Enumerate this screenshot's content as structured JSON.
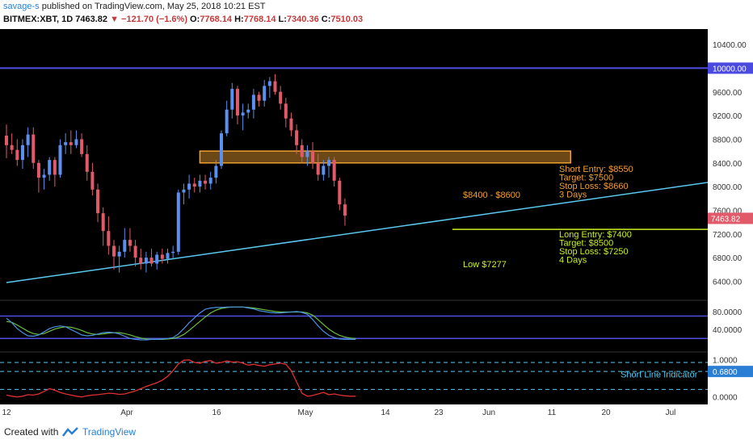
{
  "header": {
    "user": "savage-s",
    "published": " published on TradingView.com, May 25, 2018 10:21 EST",
    "symbol": "BITMEX:XBT, 1D",
    "last": "7463.82",
    "arrow": "▼",
    "change": "−121.70 (−1.6%)",
    "o_label": "O:",
    "o": "7768.14",
    "h_label": "H:",
    "h": "7768.14",
    "l_label": "L:",
    "l": "7340.36",
    "c_label": "C:",
    "c": "7510.03"
  },
  "footer": {
    "created": "Created with",
    "brand": "TradingView"
  },
  "colors": {
    "background": "#000000",
    "up": "#5b8ff0",
    "down": "#e05a6a",
    "trendline": "#5bc8f0",
    "horizontal": "#5050e0",
    "zone": "#f0a030",
    "support": "#d0f020",
    "annotation_green": "#c8f020",
    "annotation_orange": "#f0a030",
    "stoch_k": "#4a90e0",
    "stoch_d": "#6ac040",
    "osc": "#e03030",
    "level_dashed": "#5bc8f0"
  },
  "chart_data": {
    "type": "candlestick",
    "price_axis": {
      "ylim": [
        6080,
        10660
      ],
      "ticks": [
        "10400.00",
        "10000.00",
        "9600.00",
        "9200.00",
        "8800.00",
        "8400.00",
        "8000.00",
        "7600.00",
        "7200.00",
        "6800.00",
        "6400.00"
      ],
      "highlight_labels": [
        "10000.00",
        "7463.82"
      ]
    },
    "x_axis": {
      "ticks": [
        "12",
        "Apr",
        "16",
        "May",
        "14",
        "23",
        "Jun",
        "11",
        "20",
        "Jul"
      ]
    },
    "candles": [
      {
        "o": 8860,
        "h": 9050,
        "l": 8480,
        "c": 8700
      },
      {
        "o": 8700,
        "h": 8900,
        "l": 8550,
        "c": 8620
      },
      {
        "o": 8620,
        "h": 8800,
        "l": 8350,
        "c": 8450
      },
      {
        "o": 8450,
        "h": 8800,
        "l": 8300,
        "c": 8700
      },
      {
        "o": 8700,
        "h": 9000,
        "l": 8500,
        "c": 8880
      },
      {
        "o": 8880,
        "h": 9000,
        "l": 8300,
        "c": 8400
      },
      {
        "o": 8400,
        "h": 8450,
        "l": 7900,
        "c": 8150
      },
      {
        "o": 8150,
        "h": 8300,
        "l": 7950,
        "c": 8200
      },
      {
        "o": 8200,
        "h": 8500,
        "l": 8100,
        "c": 8450
      },
      {
        "o": 8450,
        "h": 8500,
        "l": 8000,
        "c": 8200
      },
      {
        "o": 8200,
        "h": 8800,
        "l": 8150,
        "c": 8700
      },
      {
        "o": 8700,
        "h": 8900,
        "l": 8550,
        "c": 8750
      },
      {
        "o": 8750,
        "h": 8950,
        "l": 8550,
        "c": 8700
      },
      {
        "o": 8700,
        "h": 8950,
        "l": 8650,
        "c": 8800
      },
      {
        "o": 8800,
        "h": 8900,
        "l": 8500,
        "c": 8550
      },
      {
        "o": 8550,
        "h": 8700,
        "l": 8100,
        "c": 8250
      },
      {
        "o": 8250,
        "h": 8400,
        "l": 7850,
        "c": 7950
      },
      {
        "o": 7950,
        "h": 8050,
        "l": 7400,
        "c": 7550
      },
      {
        "o": 7550,
        "h": 7650,
        "l": 7000,
        "c": 7250
      },
      {
        "o": 7250,
        "h": 7500,
        "l": 6850,
        "c": 7000
      },
      {
        "o": 7000,
        "h": 7100,
        "l": 6600,
        "c": 6820
      },
      {
        "o": 6820,
        "h": 7000,
        "l": 6550,
        "c": 6900
      },
      {
        "o": 6900,
        "h": 7300,
        "l": 6800,
        "c": 7100
      },
      {
        "o": 7100,
        "h": 7300,
        "l": 6900,
        "c": 7000
      },
      {
        "o": 7000,
        "h": 7100,
        "l": 6650,
        "c": 6800
      },
      {
        "o": 6800,
        "h": 6950,
        "l": 6600,
        "c": 6700
      },
      {
        "o": 6700,
        "h": 6900,
        "l": 6550,
        "c": 6800
      },
      {
        "o": 6800,
        "h": 6950,
        "l": 6650,
        "c": 6700
      },
      {
        "o": 6700,
        "h": 6900,
        "l": 6600,
        "c": 6850
      },
      {
        "o": 6850,
        "h": 6950,
        "l": 6700,
        "c": 6780
      },
      {
        "o": 6780,
        "h": 6950,
        "l": 6700,
        "c": 6880
      },
      {
        "o": 6880,
        "h": 7000,
        "l": 6780,
        "c": 6900
      },
      {
        "o": 6900,
        "h": 7950,
        "l": 6850,
        "c": 7900
      },
      {
        "o": 7900,
        "h": 8050,
        "l": 7700,
        "c": 7950
      },
      {
        "o": 7950,
        "h": 8200,
        "l": 7800,
        "c": 8050
      },
      {
        "o": 8050,
        "h": 8150,
        "l": 7900,
        "c": 8000
      },
      {
        "o": 8000,
        "h": 8200,
        "l": 7900,
        "c": 8100
      },
      {
        "o": 8100,
        "h": 8200,
        "l": 7950,
        "c": 8050
      },
      {
        "o": 8050,
        "h": 8250,
        "l": 7950,
        "c": 8150
      },
      {
        "o": 8150,
        "h": 8450,
        "l": 8050,
        "c": 8350
      },
      {
        "o": 8350,
        "h": 8950,
        "l": 8300,
        "c": 8900
      },
      {
        "o": 8900,
        "h": 9450,
        "l": 8850,
        "c": 9300
      },
      {
        "o": 9300,
        "h": 9750,
        "l": 9150,
        "c": 9650
      },
      {
        "o": 9650,
        "h": 9700,
        "l": 9050,
        "c": 9200
      },
      {
        "o": 9200,
        "h": 9400,
        "l": 8950,
        "c": 9250
      },
      {
        "o": 9250,
        "h": 9400,
        "l": 9150,
        "c": 9300
      },
      {
        "o": 9300,
        "h": 9650,
        "l": 9150,
        "c": 9550
      },
      {
        "o": 9550,
        "h": 9600,
        "l": 9350,
        "c": 9450
      },
      {
        "o": 9450,
        "h": 9800,
        "l": 9350,
        "c": 9700
      },
      {
        "o": 9700,
        "h": 9850,
        "l": 9500,
        "c": 9780
      },
      {
        "o": 9780,
        "h": 9900,
        "l": 9550,
        "c": 9600
      },
      {
        "o": 9600,
        "h": 9700,
        "l": 9300,
        "c": 9400
      },
      {
        "o": 9400,
        "h": 9500,
        "l": 9000,
        "c": 9150
      },
      {
        "o": 9150,
        "h": 9250,
        "l": 8850,
        "c": 8950
      },
      {
        "o": 8950,
        "h": 9050,
        "l": 8550,
        "c": 8700
      },
      {
        "o": 8700,
        "h": 8800,
        "l": 8400,
        "c": 8500
      },
      {
        "o": 8500,
        "h": 8700,
        "l": 8350,
        "c": 8600
      },
      {
        "o": 8600,
        "h": 8750,
        "l": 8300,
        "c": 8400
      },
      {
        "o": 8400,
        "h": 8550,
        "l": 8100,
        "c": 8200
      },
      {
        "o": 8200,
        "h": 8450,
        "l": 8100,
        "c": 8350
      },
      {
        "o": 8350,
        "h": 8500,
        "l": 8150,
        "c": 8450
      },
      {
        "o": 8450,
        "h": 8500,
        "l": 8000,
        "c": 8100
      },
      {
        "o": 8100,
        "h": 8150,
        "l": 7600,
        "c": 7700
      },
      {
        "o": 7700,
        "h": 7800,
        "l": 7340,
        "c": 7510
      }
    ],
    "horizontal_lines": [
      10000
    ],
    "trendline": {
      "from": [
        0,
        6380
      ],
      "to": [
        139,
        8180
      ]
    },
    "resistance_zone": {
      "from_bar": 36,
      "to_bar": 105,
      "low": 8400,
      "high": 8600
    },
    "support_line": {
      "from_bar": 83,
      "to_bar": 139,
      "value": 7277
    },
    "annotations": [
      {
        "lines": [
          "Short Entry: $8550",
          "Target: $7500",
          "Stop Loss: $8660",
          "3 Days"
        ],
        "color": "#f0a030"
      },
      {
        "lines": [
          "$8400 - $8600"
        ],
        "color": "#f0a030"
      },
      {
        "lines": [
          "Long Entry: $7400",
          "Target: $8500",
          "Stop Loss: $7250",
          "4 Days"
        ],
        "color": "#c8f020"
      },
      {
        "lines": [
          "Low $7277"
        ],
        "color": "#c8f020"
      }
    ],
    "stochastic": {
      "ylim": [
        -10,
        105
      ],
      "ticks": [
        "80.0000",
        "40.0000"
      ],
      "levels": [
        70,
        20
      ],
      "k": [
        65,
        55,
        42,
        33,
        26,
        25,
        28,
        35,
        42,
        46,
        48,
        46,
        40,
        34,
        28,
        26,
        27,
        30,
        33,
        34,
        33,
        30,
        25,
        20,
        18,
        17,
        17,
        18,
        18,
        19,
        20,
        22,
        30,
        42,
        55,
        66,
        77,
        85,
        88,
        89,
        89,
        90,
        90,
        90,
        90,
        88,
        86,
        82,
        80,
        78,
        77,
        77,
        78,
        79,
        80,
        78,
        74,
        62,
        48,
        36,
        27,
        22,
        19,
        18,
        18,
        18
      ],
      "d": [
        58,
        56,
        50,
        43,
        36,
        31,
        29,
        31,
        36,
        41,
        44,
        46,
        45,
        42,
        38,
        33,
        30,
        29,
        30,
        32,
        33,
        33,
        31,
        28,
        24,
        21,
        19,
        18,
        18,
        18,
        19,
        20,
        23,
        29,
        38,
        48,
        58,
        68,
        77,
        83,
        87,
        89,
        90,
        90,
        90,
        89,
        88,
        86,
        84,
        82,
        80,
        79,
        79,
        79,
        79,
        79,
        77,
        72,
        62,
        51,
        41,
        33,
        27,
        23,
        21,
        20
      ]
    },
    "oscillator": {
      "ylim": [
        -0.2,
        1.2
      ],
      "ticks": [
        "1.0000",
        "0.0000"
      ],
      "dashed_levels": [
        0.92,
        0.68,
        0.2
      ],
      "highlight_label": "0.6800",
      "label": "Short Line Indicator",
      "values": [
        0.05,
        0.02,
        0.0,
        0.02,
        0.06,
        0.05,
        0.08,
        0.15,
        0.22,
        0.18,
        0.12,
        0.08,
        0.05,
        0.02,
        0.0,
        0.03,
        0.05,
        0.06,
        0.08,
        0.1,
        0.09,
        0.07,
        0.08,
        0.12,
        0.16,
        0.22,
        0.28,
        0.33,
        0.38,
        0.45,
        0.55,
        0.7,
        0.88,
        0.98,
        0.99,
        0.92,
        0.9,
        0.95,
        0.97,
        0.9,
        0.92,
        0.96,
        0.93,
        0.94,
        0.9,
        0.85,
        0.87,
        0.84,
        0.82,
        0.86,
        0.88,
        0.9,
        0.87,
        0.7,
        0.4,
        0.1,
        0.02,
        0.04,
        0.08,
        0.12,
        0.06,
        0.08,
        0.05,
        0.03,
        0.02,
        0.02
      ]
    }
  }
}
